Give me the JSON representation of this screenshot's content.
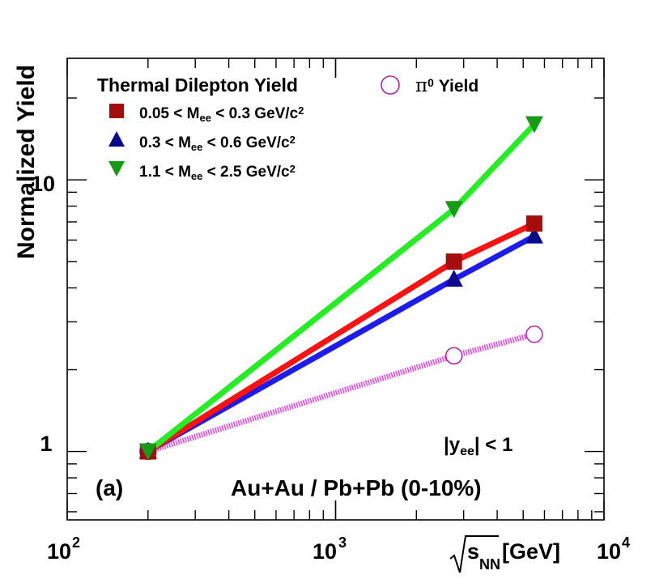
{
  "chart_data": {
    "type": "line",
    "xscale": "log",
    "yscale": "log",
    "xlim": [
      100,
      10000
    ],
    "ylim": [
      0.56,
      28
    ],
    "ylabel": "Normalized Yield",
    "xlabel_root": "s",
    "xlabel_sub": "NN",
    "xlabel_unit": "[GeV]",
    "x_ticks": [
      {
        "value": 100,
        "base": "10",
        "exp": "2"
      },
      {
        "value": 1000,
        "base": "10",
        "exp": "3"
      },
      {
        "value": 10000,
        "base": "10",
        "exp": "4"
      }
    ],
    "y_ticks": [
      {
        "value": 1,
        "label": "1"
      },
      {
        "value": 10,
        "label": "10"
      }
    ],
    "legend": {
      "title": "Thermal Dilepton Yield",
      "pi0_label": "Yield",
      "pi0_symbol": "π",
      "pi0_sup": "0"
    },
    "series": [
      {
        "name": "0.05 < Mee < 0.3 GeV/c2",
        "lo": "0.05 <",
        "hi": "< 0.3 GeV/c",
        "marker": "square",
        "color": "#a50d0d",
        "line_color": "#ff1111",
        "x": [
          200,
          2760,
          5500
        ],
        "values": [
          1.0,
          5.0,
          6.9
        ]
      },
      {
        "name": "0.3 < Mee < 0.6 GeV/c2",
        "lo": "0.3 <",
        "hi": "< 0.6 GeV/c",
        "marker": "triangle-up",
        "color": "#0a0a8c",
        "line_color": "#1c1cf0",
        "x": [
          200,
          2760,
          5500
        ],
        "values": [
          1.0,
          4.3,
          6.2
        ]
      },
      {
        "name": "1.1 < Mee < 2.5 GeV/c2",
        "lo": "1.1 <",
        "hi": "< 2.5 GeV/c",
        "marker": "triangle-down",
        "color": "#169b16",
        "line_color": "#22ee22",
        "x": [
          200,
          2760,
          5500
        ],
        "values": [
          1.0,
          7.8,
          16.0
        ]
      },
      {
        "name": "π0 Yield",
        "marker": "circle-open",
        "color": "#b020b0",
        "line_color": "#e040e0",
        "dotted": true,
        "x": [
          200,
          2760,
          5500
        ],
        "values": [
          1.0,
          2.25,
          2.7
        ]
      }
    ],
    "annotations": {
      "rapidity_y": "y",
      "rapidity_sub": "ee",
      "rapidity_cut": "< 1",
      "system": "Au+Au / Pb+Pb (0-10%)",
      "panel": "(a)"
    }
  }
}
